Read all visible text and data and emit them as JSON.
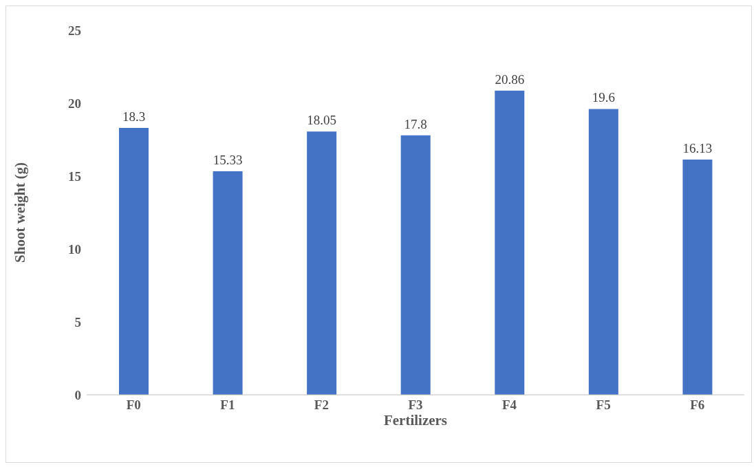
{
  "chart_data": {
    "type": "bar",
    "xlabel": "Fertilizers",
    "ylabel": "Shoot weight (g)",
    "categories": [
      "F0",
      "F1",
      "F2",
      "F3",
      "F4",
      "F5",
      "F6"
    ],
    "values": [
      18.3,
      15.33,
      18.05,
      17.8,
      20.86,
      19.6,
      16.13
    ],
    "color": "#4472c4",
    "ylim": [
      0,
      25
    ],
    "yticks": [
      0,
      5,
      10,
      15,
      20,
      25
    ],
    "data_labels": true,
    "grid": false
  }
}
